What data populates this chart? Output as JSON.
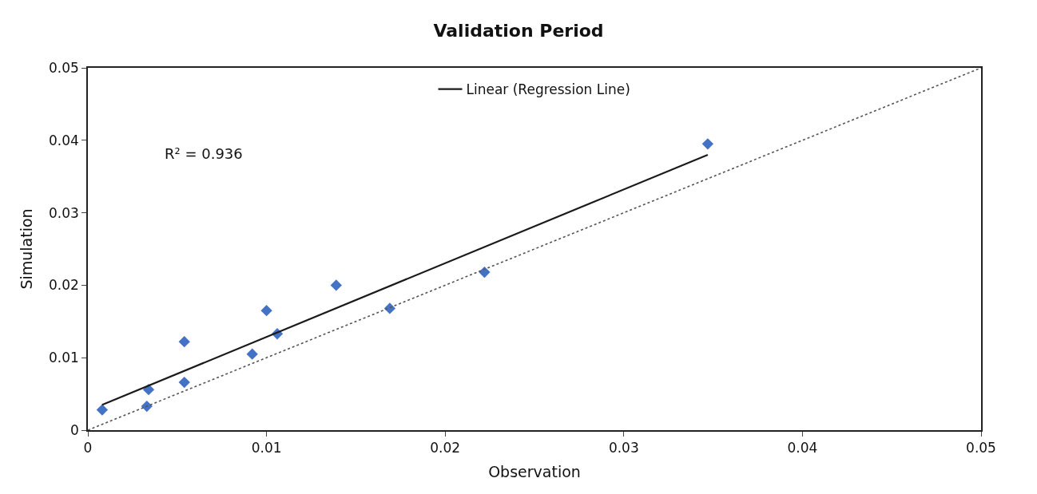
{
  "chart_data": {
    "type": "scatter",
    "title": "Validation Period",
    "xlabel": "Observation",
    "ylabel": "Simulation",
    "annotations": [
      "R² = 0.936"
    ],
    "xlim": [
      0,
      0.05
    ],
    "ylim": [
      0,
      0.05
    ],
    "xticks": [
      0,
      0.01,
      0.02,
      0.03,
      0.04,
      0.05
    ],
    "yticks": [
      0,
      0.01,
      0.02,
      0.03,
      0.04,
      0.05
    ],
    "legend": "top",
    "series": [
      {
        "color": "#4472c4",
        "marker": "diamond",
        "x": [
          0.0008,
          0.0033,
          0.0034,
          0.0054,
          0.0054,
          0.0092,
          0.01,
          0.0106,
          0.0139,
          0.0169,
          0.0222,
          0.0347
        ],
        "values": [
          0.0028,
          0.0033,
          0.0056,
          0.0066,
          0.0122,
          0.0105,
          0.0165,
          0.0133,
          0.02,
          0.0168,
          0.0218,
          0.0395
        ]
      },
      {
        "type": "line",
        "name": "Linear (Regression Line)",
        "color": "#1a1a1a",
        "line_style": "solid",
        "marker": "none",
        "x": [
          0.0008,
          0.0347
        ],
        "values": [
          0.0035,
          0.038
        ]
      },
      {
        "type": "line",
        "color": "#555555",
        "line_style": "dotted",
        "marker": "none",
        "x": [
          0,
          0.05
        ],
        "values": [
          0,
          0.05
        ]
      }
    ]
  }
}
